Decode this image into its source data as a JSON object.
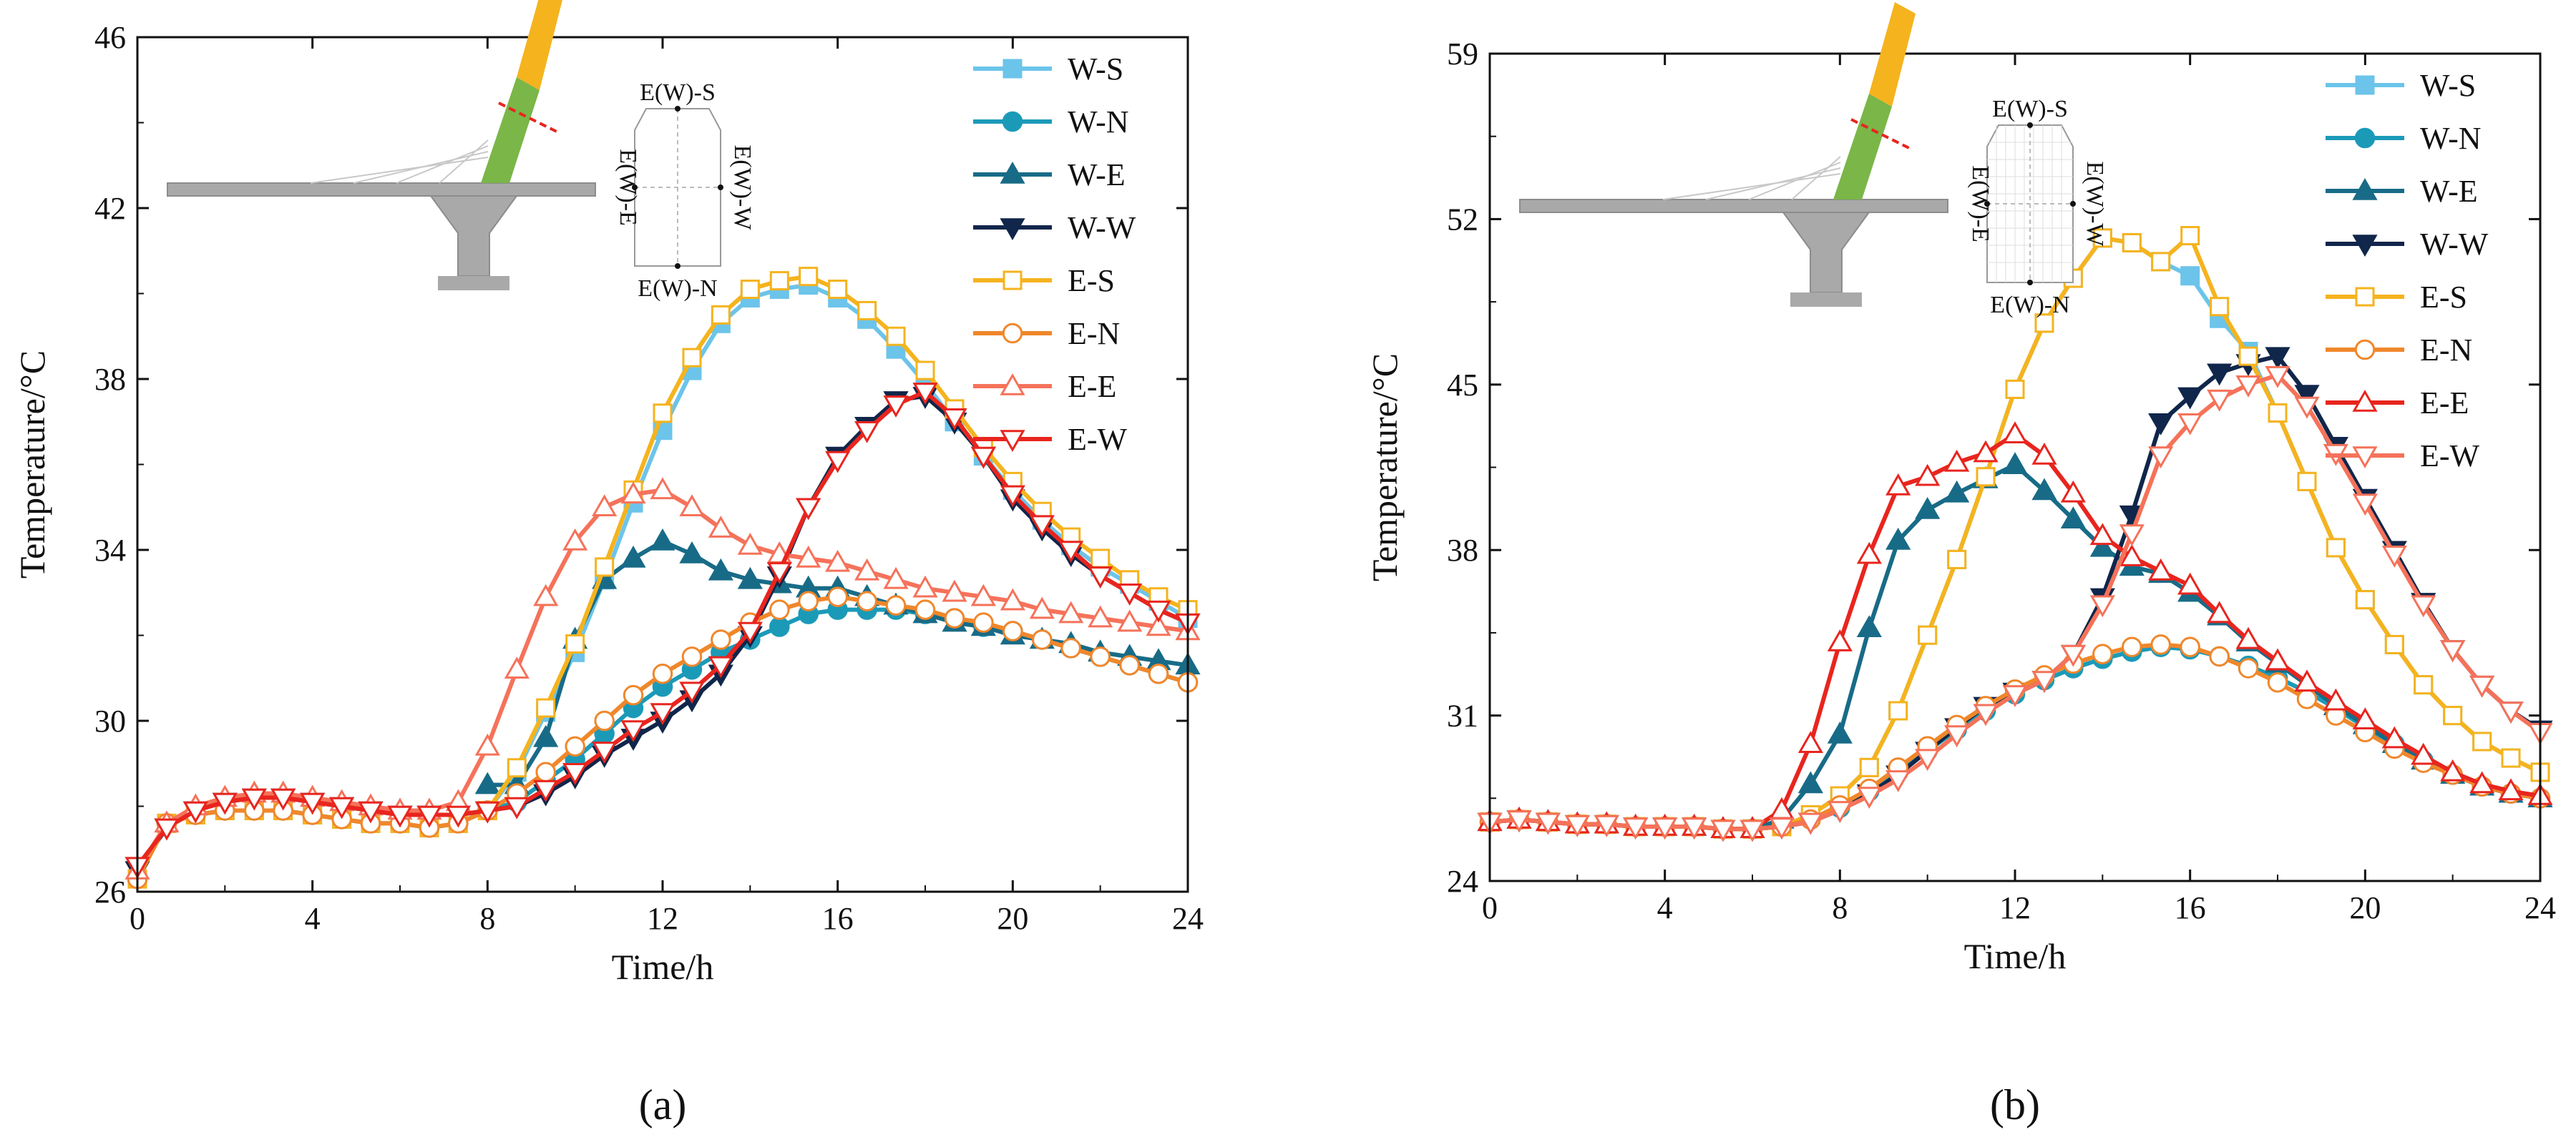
{
  "chart_data": [
    {
      "type": "line",
      "panel_label": "(a)",
      "title": "",
      "xlabel": "Time/h",
      "ylabel": "Temperature/°C",
      "xlim": [
        0,
        24
      ],
      "ylim": [
        26,
        46
      ],
      "xticks": [
        0,
        4,
        8,
        12,
        16,
        20,
        24
      ],
      "yticks": [
        26,
        30,
        34,
        38,
        42,
        46
      ],
      "legend_position": "top-right",
      "inset_labels": [
        "E(W)-S",
        "E(W)-N",
        "E(W)-E",
        "E(W)-W"
      ],
      "x": [
        0,
        0.67,
        1.33,
        2,
        2.67,
        3.33,
        4,
        4.67,
        5.33,
        6,
        6.67,
        7.33,
        8,
        8.67,
        9.33,
        10,
        10.67,
        11.33,
        12,
        12.67,
        13.33,
        14,
        14.67,
        15.33,
        16,
        16.67,
        17.33,
        18,
        18.67,
        19.33,
        20,
        20.67,
        21.33,
        22,
        22.67,
        23.33,
        24
      ],
      "series": [
        {
          "name": "W-S",
          "color": "#6cc4ea",
          "marker": "square",
          "filled": true,
          "values": [
            26.3,
            27.6,
            27.8,
            27.9,
            27.9,
            27.9,
            27.8,
            27.7,
            27.6,
            27.6,
            27.5,
            27.6,
            27.9,
            28.8,
            30.2,
            31.6,
            33.3,
            35.1,
            36.8,
            38.2,
            39.3,
            39.9,
            40.1,
            40.2,
            39.9,
            39.4,
            38.7,
            37.9,
            37.0,
            36.2,
            35.4,
            34.7,
            34.1,
            33.6,
            33.2,
            32.8,
            32.4
          ]
        },
        {
          "name": "W-N",
          "color": "#1b9ab8",
          "marker": "circle",
          "filled": true,
          "values": [
            26.3,
            27.6,
            27.8,
            27.9,
            27.9,
            27.9,
            27.8,
            27.7,
            27.6,
            27.6,
            27.5,
            27.6,
            27.9,
            28.1,
            28.6,
            29.1,
            29.7,
            30.3,
            30.8,
            31.2,
            31.6,
            31.9,
            32.2,
            32.5,
            32.6,
            32.6,
            32.6,
            32.5,
            32.4,
            32.2,
            32.1,
            31.9,
            31.7,
            31.5,
            31.3,
            31.1,
            30.9
          ]
        },
        {
          "name": "W-E",
          "color": "#186b87",
          "marker": "triangle-up",
          "filled": true,
          "values": [
            null,
            null,
            null,
            null,
            null,
            null,
            null,
            null,
            null,
            null,
            null,
            null,
            28.5,
            28.5,
            29.6,
            31.9,
            33.3,
            33.8,
            34.2,
            33.9,
            33.5,
            33.3,
            33.2,
            33.1,
            33.1,
            32.9,
            32.7,
            32.5,
            32.3,
            32.2,
            32.0,
            31.9,
            31.8,
            31.6,
            31.5,
            31.4,
            31.3
          ]
        },
        {
          "name": "W-W",
          "color": "#10264a",
          "marker": "triangle-down",
          "filled": true,
          "values": [
            26.5,
            27.5,
            27.9,
            28.1,
            28.2,
            28.2,
            28.1,
            28.0,
            27.9,
            27.8,
            27.8,
            27.8,
            27.9,
            28.0,
            28.3,
            28.7,
            29.2,
            29.6,
            30.0,
            30.5,
            31.1,
            32.0,
            33.4,
            35.0,
            36.2,
            36.9,
            37.5,
            37.6,
            37.0,
            36.2,
            35.2,
            34.5,
            33.9,
            33.4,
            33.0,
            32.6,
            32.3
          ]
        },
        {
          "name": "E-S",
          "color": "#f5b31e",
          "marker": "square",
          "filled": false,
          "values": [
            26.3,
            27.6,
            27.8,
            27.9,
            27.9,
            27.9,
            27.8,
            27.7,
            27.6,
            27.6,
            27.5,
            27.6,
            27.9,
            28.9,
            30.3,
            31.8,
            33.6,
            35.4,
            37.2,
            38.5,
            39.5,
            40.1,
            40.3,
            40.4,
            40.1,
            39.6,
            39.0,
            38.2,
            37.3,
            36.4,
            35.6,
            34.9,
            34.3,
            33.8,
            33.3,
            32.9,
            32.6
          ]
        },
        {
          "name": "E-N",
          "color": "#f0872b",
          "marker": "circle",
          "filled": false,
          "values": [
            26.3,
            27.6,
            27.8,
            27.9,
            27.9,
            27.9,
            27.8,
            27.7,
            27.6,
            27.6,
            27.5,
            27.6,
            27.9,
            28.3,
            28.8,
            29.4,
            30.0,
            30.6,
            31.1,
            31.5,
            31.9,
            32.3,
            32.6,
            32.8,
            32.9,
            32.8,
            32.7,
            32.6,
            32.4,
            32.3,
            32.1,
            31.9,
            31.7,
            31.5,
            31.3,
            31.1,
            30.9
          ]
        },
        {
          "name": "E-E",
          "color": "#f5725a",
          "marker": "triangle-up",
          "filled": false,
          "values": [
            26.5,
            27.6,
            28.0,
            28.2,
            28.3,
            28.3,
            28.2,
            28.1,
            28.0,
            27.9,
            27.9,
            28.1,
            29.4,
            31.2,
            32.9,
            34.2,
            35.0,
            35.3,
            35.4,
            35.0,
            34.5,
            34.1,
            33.9,
            33.8,
            33.7,
            33.5,
            33.3,
            33.1,
            33.0,
            32.9,
            32.8,
            32.6,
            32.5,
            32.4,
            32.3,
            32.2,
            32.1
          ]
        },
        {
          "name": "E-W",
          "color": "#e8251e",
          "marker": "triangle-down",
          "filled": false,
          "values": [
            26.6,
            27.5,
            27.9,
            28.1,
            28.2,
            28.2,
            28.1,
            28.0,
            27.9,
            27.8,
            27.8,
            27.8,
            27.9,
            28.0,
            28.4,
            28.8,
            29.3,
            29.8,
            30.2,
            30.7,
            31.3,
            32.1,
            33.5,
            35.0,
            36.1,
            36.8,
            37.4,
            37.7,
            37.1,
            36.2,
            35.3,
            34.6,
            34.0,
            33.4,
            33.0,
            32.6,
            32.3
          ]
        }
      ]
    },
    {
      "type": "line",
      "panel_label": "(b)",
      "title": "",
      "xlabel": "Time/h",
      "ylabel": "Temperature/°C",
      "xlim": [
        0,
        24
      ],
      "ylim": [
        24,
        59
      ],
      "xticks": [
        0,
        4,
        8,
        12,
        16,
        20,
        24
      ],
      "yticks": [
        24,
        31,
        38,
        45,
        52,
        59
      ],
      "legend_position": "top-right",
      "inset_labels": [
        "E(W)-S",
        "E(W)-N",
        "E(W)-E",
        "E(W)-W"
      ],
      "x": [
        0,
        0.67,
        1.33,
        2,
        2.67,
        3.33,
        4,
        4.67,
        5.33,
        6,
        6.67,
        7.33,
        8,
        8.67,
        9.33,
        10,
        10.67,
        11.33,
        12,
        12.67,
        13.33,
        14,
        14.67,
        15.33,
        16,
        16.67,
        17.33,
        18,
        18.67,
        19.33,
        20,
        20.67,
        21.33,
        22,
        22.67,
        23.33,
        24
      ],
      "series": [
        {
          "name": "W-S",
          "color": "#6cc4ea",
          "marker": "square",
          "filled": true,
          "values": [
            26.5,
            26.6,
            26.5,
            26.4,
            26.4,
            26.3,
            26.3,
            26.3,
            26.2,
            26.2,
            26.3,
            26.8,
            27.6,
            28.8,
            31.2,
            34.4,
            37.6,
            41.1,
            44.8,
            47.6,
            49.5,
            51.2,
            51.0,
            50.2,
            49.6,
            47.8,
            46.4,
            43.8,
            40.9,
            38.1,
            35.9,
            34.0,
            32.3,
            31.0,
            29.9,
            29.2,
            28.6
          ]
        },
        {
          "name": "W-N",
          "color": "#1b9ab8",
          "marker": "circle",
          "filled": true,
          "values": [
            26.5,
            26.6,
            26.5,
            26.4,
            26.4,
            26.3,
            26.3,
            26.3,
            26.2,
            26.2,
            26.3,
            26.6,
            27.1,
            27.8,
            28.6,
            29.5,
            30.4,
            31.2,
            31.9,
            32.5,
            33.0,
            33.4,
            33.7,
            33.9,
            33.8,
            33.5,
            33.1,
            32.6,
            32.0,
            31.3,
            30.5,
            29.8,
            29.1,
            28.5,
            28.0,
            27.7,
            27.5
          ]
        },
        {
          "name": "W-E",
          "color": "#186b87",
          "marker": "triangle-up",
          "filled": true,
          "values": [
            26.5,
            26.6,
            26.5,
            26.4,
            26.4,
            26.3,
            26.3,
            26.3,
            26.2,
            26.2,
            26.6,
            28.1,
            30.2,
            34.7,
            38.4,
            39.7,
            40.4,
            41.0,
            41.6,
            40.5,
            39.3,
            38.1,
            37.3,
            37.0,
            36.2,
            35.2,
            34.1,
            33.2,
            32.3,
            31.4,
            30.6,
            29.8,
            29.1,
            28.5,
            28.0,
            27.7,
            27.5
          ]
        },
        {
          "name": "W-W",
          "color": "#10264a",
          "marker": "triangle-down",
          "filled": true,
          "values": [
            26.5,
            26.6,
            26.5,
            26.4,
            26.4,
            26.3,
            26.3,
            26.3,
            26.2,
            26.2,
            26.3,
            26.5,
            27.0,
            27.7,
            28.5,
            29.5,
            30.5,
            31.4,
            32.0,
            32.5,
            33.6,
            36.0,
            39.5,
            43.4,
            44.5,
            45.5,
            45.9,
            46.2,
            44.6,
            42.4,
            40.2,
            38.0,
            35.8,
            33.8,
            32.3,
            31.2,
            30.4
          ]
        },
        {
          "name": "E-S",
          "color": "#f5b31e",
          "marker": "square",
          "filled": false,
          "values": [
            26.5,
            26.6,
            26.5,
            26.4,
            26.4,
            26.3,
            26.3,
            26.3,
            26.2,
            26.2,
            26.3,
            26.8,
            27.6,
            28.8,
            31.2,
            34.4,
            37.6,
            41.1,
            44.8,
            47.6,
            49.5,
            51.2,
            51.0,
            50.2,
            51.3,
            48.3,
            46.2,
            43.8,
            40.9,
            38.1,
            35.9,
            34.0,
            32.3,
            31.0,
            29.9,
            29.2,
            28.6
          ]
        },
        {
          "name": "E-N",
          "color": "#f0872b",
          "marker": "circle",
          "filled": false,
          "values": [
            26.5,
            26.6,
            26.5,
            26.4,
            26.4,
            26.3,
            26.3,
            26.3,
            26.2,
            26.2,
            26.3,
            26.6,
            27.2,
            27.9,
            28.8,
            29.7,
            30.6,
            31.4,
            32.1,
            32.7,
            33.2,
            33.6,
            33.9,
            34.0,
            33.9,
            33.5,
            33.0,
            32.4,
            31.7,
            31.0,
            30.3,
            29.6,
            29.0,
            28.5,
            28.0,
            27.7,
            27.5
          ]
        },
        {
          "name": "E-E",
          "color": "#e8251e",
          "marker": "triangle-up",
          "filled": false,
          "values": [
            26.5,
            26.6,
            26.5,
            26.4,
            26.4,
            26.3,
            26.3,
            26.3,
            26.2,
            26.2,
            27.0,
            29.8,
            34.1,
            37.8,
            40.7,
            41.1,
            41.7,
            42.1,
            42.9,
            42.0,
            40.4,
            38.6,
            37.7,
            37.1,
            36.5,
            35.3,
            34.2,
            33.3,
            32.4,
            31.6,
            30.8,
            30.0,
            29.3,
            28.6,
            28.1,
            27.8,
            27.6
          ]
        },
        {
          "name": "E-W",
          "color": "#f5725a",
          "marker": "triangle-down",
          "filled": false,
          "values": [
            26.5,
            26.6,
            26.5,
            26.4,
            26.4,
            26.3,
            26.3,
            26.3,
            26.2,
            26.2,
            26.3,
            26.5,
            27.0,
            27.6,
            28.3,
            29.2,
            30.2,
            31.1,
            31.9,
            32.5,
            33.6,
            35.7,
            38.7,
            42.0,
            43.4,
            44.4,
            45.0,
            45.4,
            44.1,
            42.1,
            40.0,
            37.8,
            35.7,
            33.8,
            32.3,
            31.2,
            30.3
          ]
        }
      ]
    }
  ]
}
